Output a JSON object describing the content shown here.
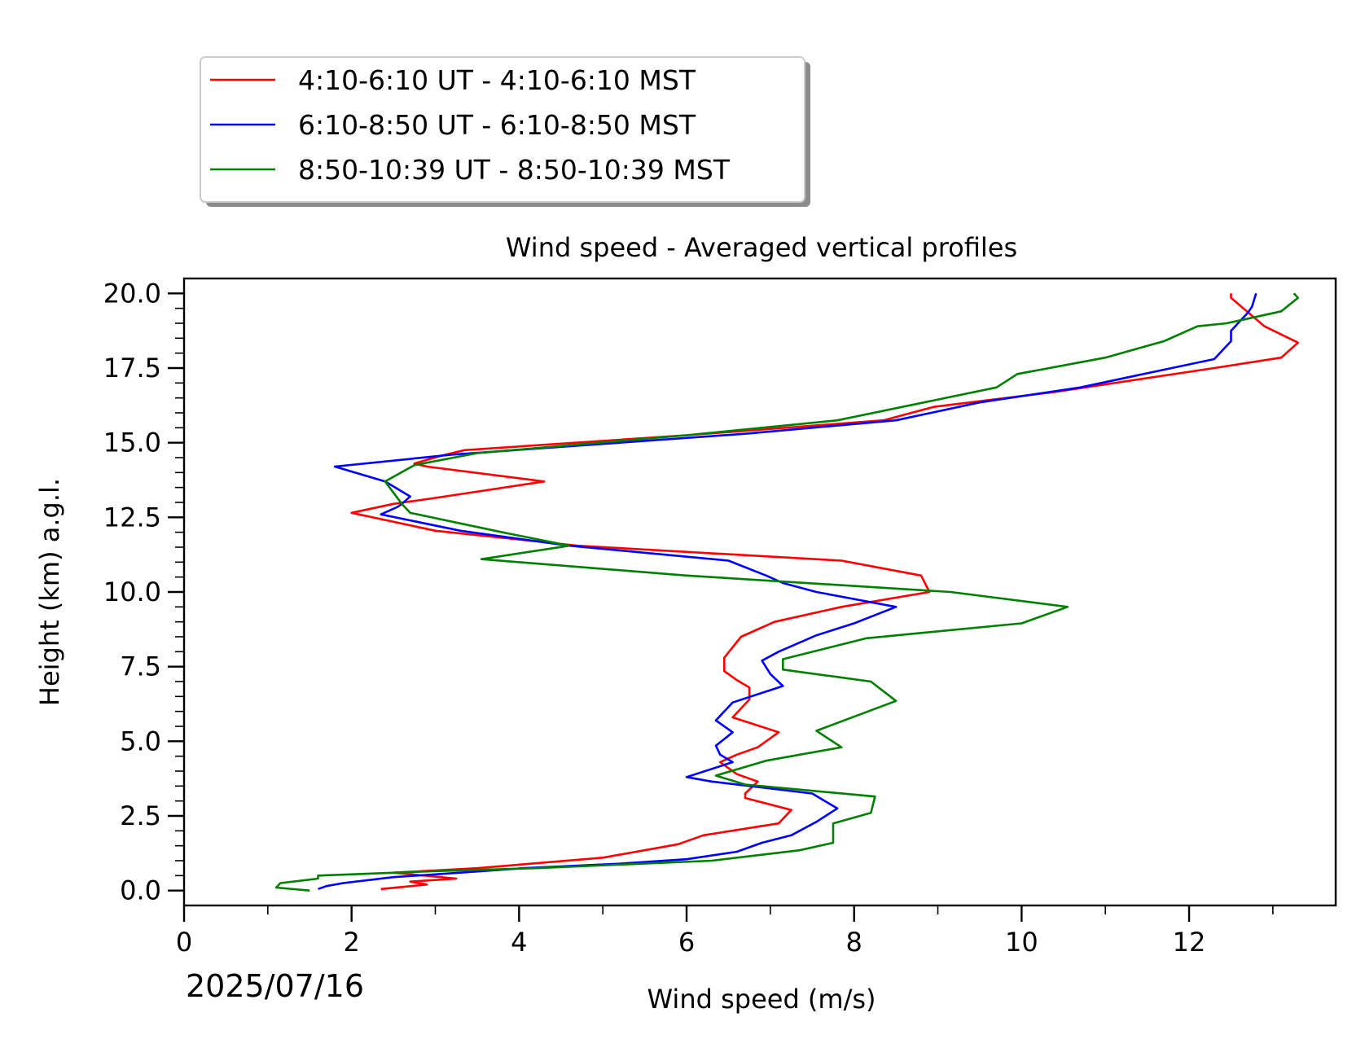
{
  "chart_data": {
    "type": "line",
    "title": "Wind speed - Averaged vertical profiles",
    "xlabel": "Wind speed (m/s)",
    "ylabel": "Height (km) a.g.l.",
    "date_label": "2025/07/16",
    "xlim": [
      0,
      13.75
    ],
    "ylim": [
      -0.5,
      20.5
    ],
    "xticks": [
      "0",
      "2",
      "4",
      "6",
      "8",
      "10",
      "12"
    ],
    "yticks": [
      "0.0",
      "2.5",
      "5.0",
      "7.5",
      "10.0",
      "12.5",
      "15.0",
      "17.5",
      "20.0"
    ],
    "legend_position": "above the plot, top-left",
    "series": [
      {
        "name": "4:10-6:10 UT - 4:10-6:10 MST",
        "color": "#ff0000",
        "points": [
          [
            2.35,
            0.05
          ],
          [
            2.9,
            0.2
          ],
          [
            2.7,
            0.3
          ],
          [
            3.25,
            0.4
          ],
          [
            2.5,
            0.6
          ],
          [
            3.5,
            0.75
          ],
          [
            5.0,
            1.1
          ],
          [
            5.9,
            1.55
          ],
          [
            6.2,
            1.85
          ],
          [
            7.1,
            2.25
          ],
          [
            7.25,
            2.7
          ],
          [
            6.7,
            3.1
          ],
          [
            6.7,
            3.25
          ],
          [
            6.85,
            3.65
          ],
          [
            6.6,
            3.9
          ],
          [
            6.4,
            4.3
          ],
          [
            6.6,
            4.55
          ],
          [
            6.85,
            4.8
          ],
          [
            7.1,
            5.3
          ],
          [
            6.55,
            5.8
          ],
          [
            6.75,
            6.4
          ],
          [
            6.75,
            6.8
          ],
          [
            6.6,
            7.05
          ],
          [
            6.45,
            7.35
          ],
          [
            6.45,
            7.8
          ],
          [
            6.65,
            8.5
          ],
          [
            7.05,
            9.0
          ],
          [
            7.85,
            9.5
          ],
          [
            8.9,
            10.0
          ],
          [
            8.8,
            10.55
          ],
          [
            7.85,
            11.05
          ],
          [
            4.7,
            11.55
          ],
          [
            3.0,
            12.05
          ],
          [
            2.0,
            12.65
          ],
          [
            2.5,
            12.95
          ],
          [
            3.0,
            13.15
          ],
          [
            4.3,
            13.7
          ],
          [
            2.9,
            14.2
          ],
          [
            2.75,
            14.3
          ],
          [
            3.05,
            14.55
          ],
          [
            3.35,
            14.75
          ],
          [
            6.0,
            15.25
          ],
          [
            8.35,
            15.75
          ],
          [
            8.95,
            16.2
          ],
          [
            10.4,
            16.7
          ],
          [
            12.3,
            17.5
          ],
          [
            13.1,
            17.85
          ],
          [
            13.3,
            18.35
          ],
          [
            12.9,
            18.9
          ],
          [
            12.5,
            19.85
          ],
          [
            12.5,
            20.0
          ]
        ]
      },
      {
        "name": "6:10-8:50 UT - 6:10-8:50 MST",
        "color": "#0000ff",
        "points": [
          [
            1.6,
            0.05
          ],
          [
            1.7,
            0.15
          ],
          [
            1.9,
            0.25
          ],
          [
            2.5,
            0.45
          ],
          [
            3.3,
            0.6
          ],
          [
            4.05,
            0.75
          ],
          [
            5.2,
            0.9
          ],
          [
            6.0,
            1.05
          ],
          [
            6.6,
            1.3
          ],
          [
            6.9,
            1.6
          ],
          [
            7.25,
            1.85
          ],
          [
            7.55,
            2.3
          ],
          [
            7.8,
            2.75
          ],
          [
            7.5,
            3.25
          ],
          [
            6.3,
            3.65
          ],
          [
            6.0,
            3.8
          ],
          [
            6.55,
            4.3
          ],
          [
            6.4,
            4.55
          ],
          [
            6.35,
            4.85
          ],
          [
            6.55,
            5.3
          ],
          [
            6.35,
            5.7
          ],
          [
            6.55,
            6.3
          ],
          [
            7.15,
            6.85
          ],
          [
            7.0,
            7.25
          ],
          [
            6.9,
            7.7
          ],
          [
            7.1,
            8.0
          ],
          [
            7.55,
            8.55
          ],
          [
            8.0,
            8.95
          ],
          [
            8.5,
            9.5
          ],
          [
            7.55,
            10.0
          ],
          [
            7.15,
            10.3
          ],
          [
            6.95,
            10.55
          ],
          [
            6.5,
            11.05
          ],
          [
            4.6,
            11.55
          ],
          [
            3.3,
            12.05
          ],
          [
            2.35,
            12.6
          ],
          [
            2.55,
            12.85
          ],
          [
            2.6,
            12.95
          ],
          [
            2.7,
            13.2
          ],
          [
            2.4,
            13.7
          ],
          [
            1.8,
            14.2
          ],
          [
            3.2,
            14.6
          ],
          [
            6.7,
            15.3
          ],
          [
            8.5,
            15.75
          ],
          [
            9.5,
            16.35
          ],
          [
            10.7,
            16.85
          ],
          [
            12.3,
            17.8
          ],
          [
            12.5,
            18.4
          ],
          [
            12.5,
            18.75
          ],
          [
            12.7,
            19.35
          ],
          [
            12.75,
            19.55
          ],
          [
            12.8,
            20.0
          ]
        ]
      },
      {
        "name": "8:50-10:39 UT - 8:50-10:39 MST",
        "color": "#008000",
        "points": [
          [
            1.5,
            0.0
          ],
          [
            1.1,
            0.1
          ],
          [
            1.15,
            0.25
          ],
          [
            1.6,
            0.4
          ],
          [
            1.6,
            0.5
          ],
          [
            3.0,
            0.65
          ],
          [
            4.2,
            0.75
          ],
          [
            6.3,
            1.0
          ],
          [
            7.35,
            1.35
          ],
          [
            7.75,
            1.6
          ],
          [
            7.75,
            2.25
          ],
          [
            8.2,
            2.6
          ],
          [
            8.25,
            3.15
          ],
          [
            6.7,
            3.55
          ],
          [
            6.35,
            3.85
          ],
          [
            6.95,
            4.35
          ],
          [
            7.85,
            4.8
          ],
          [
            7.55,
            5.35
          ],
          [
            8.5,
            6.35
          ],
          [
            8.2,
            7.0
          ],
          [
            7.15,
            7.4
          ],
          [
            7.15,
            7.75
          ],
          [
            8.15,
            8.45
          ],
          [
            10.0,
            8.95
          ],
          [
            10.55,
            9.5
          ],
          [
            9.15,
            10.0
          ],
          [
            6.0,
            10.55
          ],
          [
            3.55,
            11.1
          ],
          [
            4.6,
            11.55
          ],
          [
            3.8,
            12.0
          ],
          [
            2.7,
            12.65
          ],
          [
            2.6,
            12.95
          ],
          [
            2.4,
            13.7
          ],
          [
            2.75,
            14.25
          ],
          [
            3.5,
            14.65
          ],
          [
            6.0,
            15.25
          ],
          [
            7.8,
            15.75
          ],
          [
            9.7,
            16.85
          ],
          [
            9.95,
            17.3
          ],
          [
            11.0,
            17.85
          ],
          [
            11.7,
            18.4
          ],
          [
            12.1,
            18.9
          ],
          [
            12.45,
            19.0
          ],
          [
            13.1,
            19.4
          ],
          [
            13.3,
            19.85
          ],
          [
            13.25,
            20.0
          ]
        ]
      }
    ]
  }
}
